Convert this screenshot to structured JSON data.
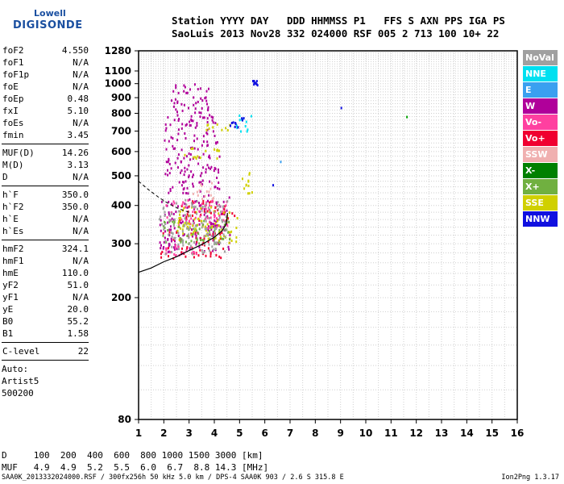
{
  "logo": {
    "line1": "Lowell",
    "line2": "DIGISONDE"
  },
  "header": {
    "line1": "Station YYYY DAY   DDD HHMMSS P1   FFS S AXN PPS IGA PS",
    "line2": "SaoLuis 2013 Nov28 332 024000 RSF 005 2 713 100 10+ 22"
  },
  "params_group1": [
    {
      "label": "foF2",
      "value": "4.550"
    },
    {
      "label": "foF1",
      "value": "N/A"
    },
    {
      "label": "foF1p",
      "value": "N/A"
    },
    {
      "label": "foE",
      "value": "N/A"
    },
    {
      "label": "foEp",
      "value": "0.48"
    },
    {
      "label": "fxI",
      "value": "5.10"
    },
    {
      "label": "foEs",
      "value": "N/A"
    },
    {
      "label": "fmin",
      "value": "3.45"
    }
  ],
  "params_group2": [
    {
      "label": "MUF(D)",
      "value": "14.26"
    },
    {
      "label": "M(D)",
      "value": "3.13"
    },
    {
      "label": "D",
      "value": "N/A"
    }
  ],
  "params_group3": [
    {
      "label": "h`F",
      "value": "350.0"
    },
    {
      "label": "h`F2",
      "value": "350.0"
    },
    {
      "label": "h`E",
      "value": "N/A"
    },
    {
      "label": "h`Es",
      "value": "N/A"
    }
  ],
  "params_group4": [
    {
      "label": "hmF2",
      "value": "324.1"
    },
    {
      "label": "hmF1",
      "value": "N/A"
    },
    {
      "label": "hmE",
      "value": "110.0"
    },
    {
      "label": "yF2",
      "value": "51.0"
    },
    {
      "label": "yF1",
      "value": "N/A"
    },
    {
      "label": "yE",
      "value": "20.0"
    },
    {
      "label": "B0",
      "value": "55.2"
    },
    {
      "label": "B1",
      "value": "1.58"
    }
  ],
  "params_group5": [
    {
      "label": "C-level",
      "value": "22"
    }
  ],
  "auto": {
    "line1": "Auto:",
    "line2": "Artist5",
    "line3": "500200"
  },
  "legend": [
    {
      "label": "NoVal",
      "color": "#a0a0a0"
    },
    {
      "label": "NNE",
      "color": "#00e0f0"
    },
    {
      "label": "E",
      "color": "#3aa0f0"
    },
    {
      "label": "W",
      "color": "#b0009a"
    },
    {
      "label": "Vo-",
      "color": "#ff40a0"
    },
    {
      "label": "Vo+",
      "color": "#f00030"
    },
    {
      "label": "SSW",
      "color": "#f0b0b0"
    },
    {
      "label": "X-",
      "color": "#008000"
    },
    {
      "label": "X+",
      "color": "#70b040"
    },
    {
      "label": "SSE",
      "color": "#d0d000"
    },
    {
      "label": "NNW",
      "color": "#1010e0"
    }
  ],
  "bottom": {
    "d_row": "D     100  200  400  600  800 1000 1500 3000 [km]",
    "muf_row": "MUF   4.9  4.9  5.2  5.5  6.0  6.7  8.8 14.3 [MHz]"
  },
  "footer": {
    "left": "SAA0K_2013332024000.RSF / 300fx256h 50 kHz 5.0 km / DPS-4 SAA0K 903 / 2.6 S 315.8 E",
    "right": "Ion2Png 1.3.17"
  },
  "chart_data": {
    "type": "scatter",
    "title": "",
    "xlabel": "",
    "ylabel": "",
    "x_ticks": [
      "1",
      "2",
      "3",
      "4",
      "5",
      "6",
      "7",
      "8",
      "9",
      "10",
      "11",
      "12",
      "13",
      "14",
      "15",
      "16"
    ],
    "y_ticks": [
      "80",
      "200",
      "300",
      "400",
      "500",
      "600",
      "700",
      "800",
      "900",
      "1000",
      "1100",
      "1280"
    ],
    "xlim": [
      1,
      16
    ],
    "y_scale": "log",
    "ylim": [
      80,
      1280
    ],
    "grid": true,
    "legend_placement": "right",
    "series": [
      {
        "name": "W",
        "color": "#b0009a",
        "clusters": [
          {
            "x": [
              1.8,
              4.6
            ],
            "y": [
              280,
              430
            ]
          },
          {
            "x": [
              2.0,
              4.2
            ],
            "y": [
              430,
              800
            ]
          },
          {
            "x": [
              2.2,
              3.8
            ],
            "y": [
              800,
              1020
            ]
          }
        ]
      },
      {
        "name": "Vo+",
        "color": "#f00030",
        "clusters": [
          {
            "x": [
              1.8,
              4.4
            ],
            "y": [
              270,
              330
            ]
          },
          {
            "x": [
              2.5,
              4.8
            ],
            "y": [
              360,
              420
            ]
          }
        ]
      },
      {
        "name": "Vo-",
        "color": "#ff40a0",
        "clusters": [
          {
            "x": [
              1.8,
              3.5
            ],
            "y": [
              275,
              300
            ]
          },
          {
            "x": [
              2.0,
              4.5
            ],
            "y": [
              340,
              420
            ]
          }
        ]
      },
      {
        "name": "SSE",
        "color": "#d0d000",
        "clusters": [
          {
            "x": [
              2.5,
              5.0
            ],
            "y": [
              300,
              400
            ]
          },
          {
            "x": [
              2.8,
              4.4
            ],
            "y": [
              570,
              620
            ]
          },
          {
            "x": [
              3.6,
              4.6
            ],
            "y": [
              700,
              760
            ]
          },
          {
            "x": [
              5.0,
              5.5
            ],
            "y": [
              420,
              520
            ]
          }
        ]
      },
      {
        "name": "NNE",
        "color": "#00e0f0",
        "clusters": [
          {
            "x": [
              4.8,
              5.6
            ],
            "y": [
              700,
              800
            ]
          }
        ]
      },
      {
        "name": "NNW",
        "color": "#1010e0",
        "clusters": [
          {
            "x": [
              5.4,
              5.7
            ],
            "y": [
              990,
              1030
            ]
          },
          {
            "x": [
              4.5,
              5.2
            ],
            "y": [
              720,
              780
            ]
          }
        ]
      },
      {
        "name": "X+",
        "color": "#70b040",
        "clusters": [
          {
            "x": [
              1.9,
              4.6
            ],
            "y": [
              300,
              360
            ]
          }
        ]
      },
      {
        "name": "SSW",
        "color": "#f0b0b0",
        "clusters": [
          {
            "x": [
              3.0,
              4.0
            ],
            "y": [
              420,
              480
            ]
          }
        ]
      },
      {
        "name": "NoVal",
        "color": "#a0a0a0",
        "clusters": [
          {
            "x": [
              1.8,
              4.5
            ],
            "y": [
              280,
              420
            ]
          }
        ]
      }
    ],
    "isolated_points": [
      {
        "x": 9.0,
        "y": 840,
        "color": "#1010e0"
      },
      {
        "x": 11.6,
        "y": 785,
        "color": "#00a000"
      },
      {
        "x": 6.3,
        "y": 470,
        "color": "#1010e0"
      },
      {
        "x": 6.6,
        "y": 560,
        "color": "#3aa0f0"
      }
    ],
    "profile_curve": {
      "x": [
        1.0,
        1.5,
        2.0,
        2.5,
        3.0,
        3.5,
        4.0,
        4.3,
        4.45,
        4.5,
        4.52
      ],
      "y": [
        242,
        250,
        262,
        272,
        285,
        298,
        315,
        330,
        345,
        362,
        378
      ]
    },
    "profile_dashed": {
      "x": [
        1.0,
        1.4,
        1.8,
        2.2,
        2.6,
        3.0
      ],
      "y": [
        480,
        450,
        425,
        405,
        390,
        380
      ]
    }
  }
}
